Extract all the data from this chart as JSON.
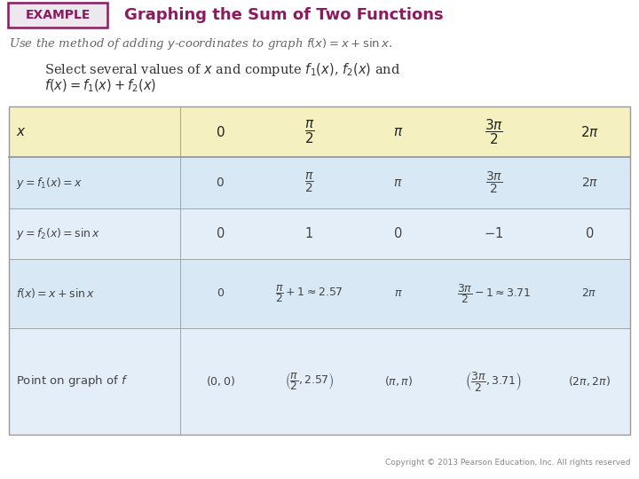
{
  "title_example": "EXAMPLE",
  "title_main": "Graphing the Sum of Two Functions",
  "subtitle": "Use the method of adding $y$-coordinates to graph $f(x) = x + \\sin x$.",
  "body_text_line1": "Select several values of $x$ and compute $f_1(x)$, $f_2(x)$ and",
  "body_text_line2": "$f(x) = f_1(x) + f_2(x)$",
  "header_bg": "#f5f0c0",
  "row_bg1": "#d8e8f4",
  "row_bg2": "#e4eef8",
  "example_box_color": "#8b1a5e",
  "title_color": "#8b1a5e",
  "col_headers": [
    "$x$",
    "$0$",
    "$\\dfrac{\\pi}{2}$",
    "$\\pi$",
    "$\\dfrac{3\\pi}{2}$",
    "$2\\pi$"
  ],
  "row1_label": "$y = f_1(x) = x$",
  "row1_vals": [
    "$0$",
    "$\\dfrac{\\pi}{2}$",
    "$\\pi$",
    "$\\dfrac{3\\pi}{2}$",
    "$2\\pi$"
  ],
  "row2_label": "$y = f_2(x) = \\sin x$",
  "row2_vals": [
    "$0$",
    "$1$",
    "$0$",
    "$-1$",
    "$0$"
  ],
  "row3_label": "$f(x) = x + \\sin x$",
  "row3_vals": [
    "$0$",
    "$\\dfrac{\\pi}{2} + 1 \\approx 2.57$",
    "$\\pi$",
    "$\\dfrac{3\\pi}{2} - 1 \\approx 3.71$",
    "$2\\pi$"
  ],
  "row4_label": "Point on graph of $f$",
  "row4_vals": [
    "$(0, 0)$",
    "$\\left(\\dfrac{\\pi}{2}, 2.57\\right)$",
    "$(\\pi, \\pi)$",
    "$\\left(\\dfrac{3\\pi}{2}, 3.71\\right)$",
    "$(2\\pi, 2\\pi)$"
  ],
  "copyright": "Copyright © 2013 Pearson Education, Inc. All rights reserved",
  "bg_color": "#ffffff",
  "text_color": "#444444",
  "border_color": "#999999"
}
